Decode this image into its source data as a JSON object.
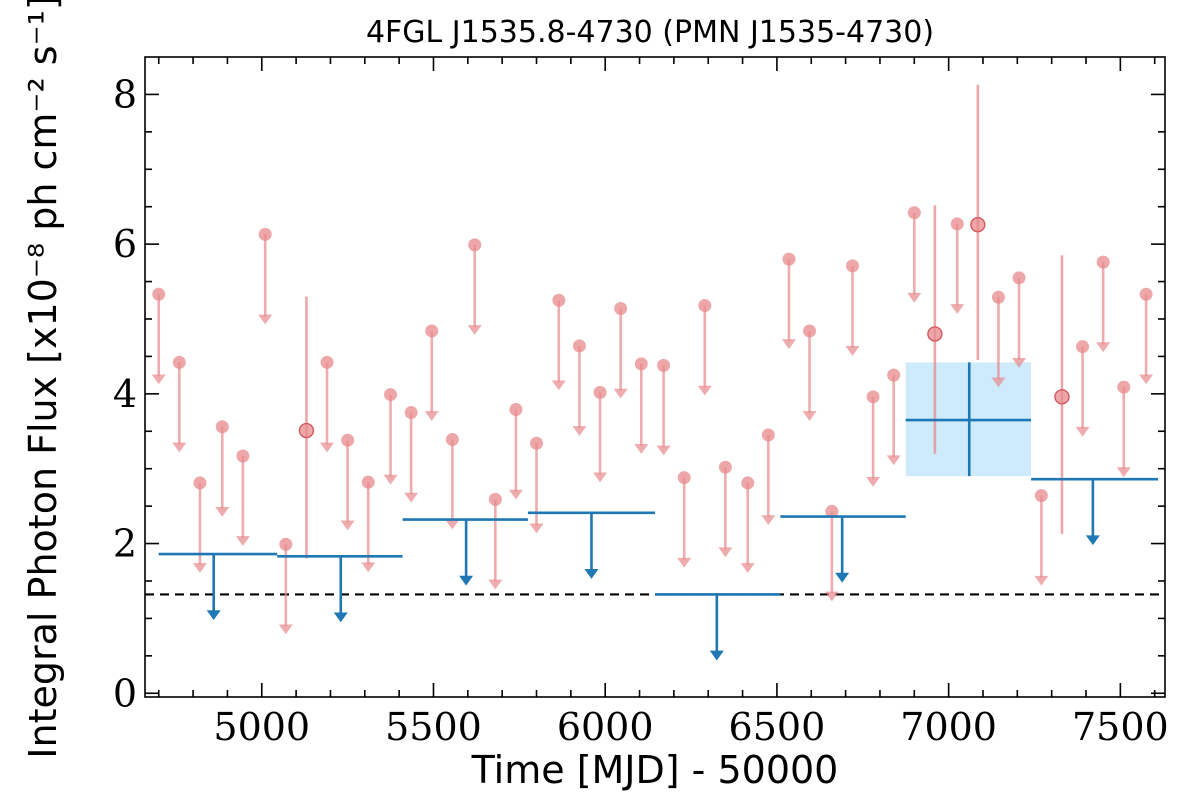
{
  "chart_data": {
    "type": "scatter",
    "title": "4FGL J1535.8-4730 (PMN J1535-4730)",
    "xlabel": "Time [MJD] - 50000",
    "ylabel": "Integral Photon Flux [x10⁻⁸ ph cm⁻² s⁻¹]",
    "xlim": [
      4660,
      7630
    ],
    "ylim": [
      -0.05,
      8.5
    ],
    "xticks": [
      5000,
      5500,
      6000,
      6500,
      7000,
      7500
    ],
    "yticks": [
      0,
      2,
      4,
      6,
      8
    ],
    "grid": false,
    "reference_line": 1.32,
    "colors": {
      "fine": "#e8898c",
      "coarse": "#1f77b4",
      "band": "#cdebfa",
      "reference": "#000000"
    },
    "series": [
      {
        "kind": "upper_limit_fine",
        "points": [
          {
            "x": 4700,
            "y": 5.33
          },
          {
            "x": 4760,
            "y": 4.42
          },
          {
            "x": 4820,
            "y": 2.81
          },
          {
            "x": 4885,
            "y": 3.56
          },
          {
            "x": 4945,
            "y": 3.17
          },
          {
            "x": 5010,
            "y": 6.13
          },
          {
            "x": 5070,
            "y": 1.99
          },
          {
            "x": 5190,
            "y": 4.42
          },
          {
            "x": 5250,
            "y": 3.38
          },
          {
            "x": 5310,
            "y": 2.82
          },
          {
            "x": 5375,
            "y": 3.99
          },
          {
            "x": 5435,
            "y": 3.75
          },
          {
            "x": 5495,
            "y": 4.84
          },
          {
            "x": 5555,
            "y": 3.39
          },
          {
            "x": 5620,
            "y": 5.99
          },
          {
            "x": 5680,
            "y": 2.59
          },
          {
            "x": 5740,
            "y": 3.79
          },
          {
            "x": 5800,
            "y": 3.34
          },
          {
            "x": 5865,
            "y": 5.25
          },
          {
            "x": 5925,
            "y": 4.64
          },
          {
            "x": 5985,
            "y": 4.02
          },
          {
            "x": 6045,
            "y": 5.14
          },
          {
            "x": 6105,
            "y": 4.4
          },
          {
            "x": 6170,
            "y": 4.38
          },
          {
            "x": 6230,
            "y": 2.88
          },
          {
            "x": 6290,
            "y": 5.18
          },
          {
            "x": 6350,
            "y": 3.02
          },
          {
            "x": 6415,
            "y": 2.81
          },
          {
            "x": 6475,
            "y": 3.45
          },
          {
            "x": 6535,
            "y": 5.8
          },
          {
            "x": 6595,
            "y": 4.84
          },
          {
            "x": 6660,
            "y": 2.43
          },
          {
            "x": 6720,
            "y": 5.71
          },
          {
            "x": 6780,
            "y": 3.96
          },
          {
            "x": 6840,
            "y": 4.25
          },
          {
            "x": 6900,
            "y": 6.42
          },
          {
            "x": 7025,
            "y": 6.27
          },
          {
            "x": 7145,
            "y": 5.29
          },
          {
            "x": 7205,
            "y": 5.55
          },
          {
            "x": 7270,
            "y": 2.64
          },
          {
            "x": 7390,
            "y": 4.63
          },
          {
            "x": 7450,
            "y": 5.76
          },
          {
            "x": 7510,
            "y": 4.09
          },
          {
            "x": 7575,
            "y": 5.33
          }
        ]
      },
      {
        "kind": "detection_fine",
        "points": [
          {
            "x": 5130,
            "y": 3.51,
            "ylow": 1.8,
            "yhigh": 5.3
          },
          {
            "x": 6960,
            "y": 4.8,
            "ylow": 3.2,
            "yhigh": 6.52
          },
          {
            "x": 7085,
            "y": 6.26,
            "ylow": 4.45,
            "yhigh": 8.13
          },
          {
            "x": 7330,
            "y": 3.96,
            "ylow": 2.13,
            "yhigh": 5.85
          }
        ]
      },
      {
        "kind": "upper_limit_coarse",
        "points": [
          {
            "x": 4860,
            "xmin": 4700,
            "xmax": 5045,
            "y": 1.86
          },
          {
            "x": 5230,
            "xmin": 5045,
            "xmax": 5410,
            "y": 1.83
          },
          {
            "x": 5595,
            "xmin": 5410,
            "xmax": 5775,
            "y": 2.32
          },
          {
            "x": 5960,
            "xmin": 5775,
            "xmax": 6145,
            "y": 2.41
          },
          {
            "x": 6325,
            "xmin": 6145,
            "xmax": 6510,
            "y": 1.32
          },
          {
            "x": 6690,
            "xmin": 6510,
            "xmax": 6875,
            "y": 2.36
          },
          {
            "x": 7420,
            "xmin": 7240,
            "xmax": 7610,
            "y": 2.86
          }
        ]
      },
      {
        "kind": "detection_coarse",
        "points": [
          {
            "x": 7060,
            "xmin": 6875,
            "xmax": 7240,
            "y": 3.65,
            "ylow": 2.9,
            "yhigh": 4.42
          }
        ]
      }
    ]
  }
}
